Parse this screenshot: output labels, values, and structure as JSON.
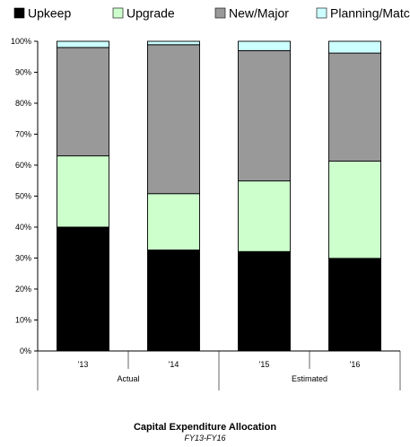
{
  "chart_data": {
    "type": "bar",
    "stacked": true,
    "title": "Capital Expenditure Allocation",
    "subtitle": "FY13-FY16",
    "categories": [
      "'13",
      "'14",
      "'15",
      "'16"
    ],
    "groups": [
      {
        "label": "Actual",
        "categories": [
          "'13",
          "'14"
        ]
      },
      {
        "label": "Estimated",
        "categories": [
          "'15",
          "'16"
        ]
      }
    ],
    "series": [
      {
        "name": "Upkeep",
        "color": "#000000",
        "values": [
          40,
          32.6,
          32.1,
          29.9
        ]
      },
      {
        "name": "Upgrade",
        "color": "#ccffcc",
        "values": [
          23,
          18.2,
          22.8,
          31.4
        ]
      },
      {
        "name": "New/Major",
        "color": "#999999",
        "values": [
          35,
          48.1,
          42.1,
          34.9
        ]
      },
      {
        "name": "Planning/Matching",
        "color": "#ccffff",
        "values": [
          2,
          1.1,
          3,
          3.8
        ]
      }
    ],
    "ylim": [
      0,
      100
    ],
    "yticks": [
      "0%",
      "10%",
      "20%",
      "30%",
      "40%",
      "50%",
      "60%",
      "70%",
      "80%",
      "90%",
      "100%"
    ],
    "grid": false,
    "legend_position": "top"
  }
}
